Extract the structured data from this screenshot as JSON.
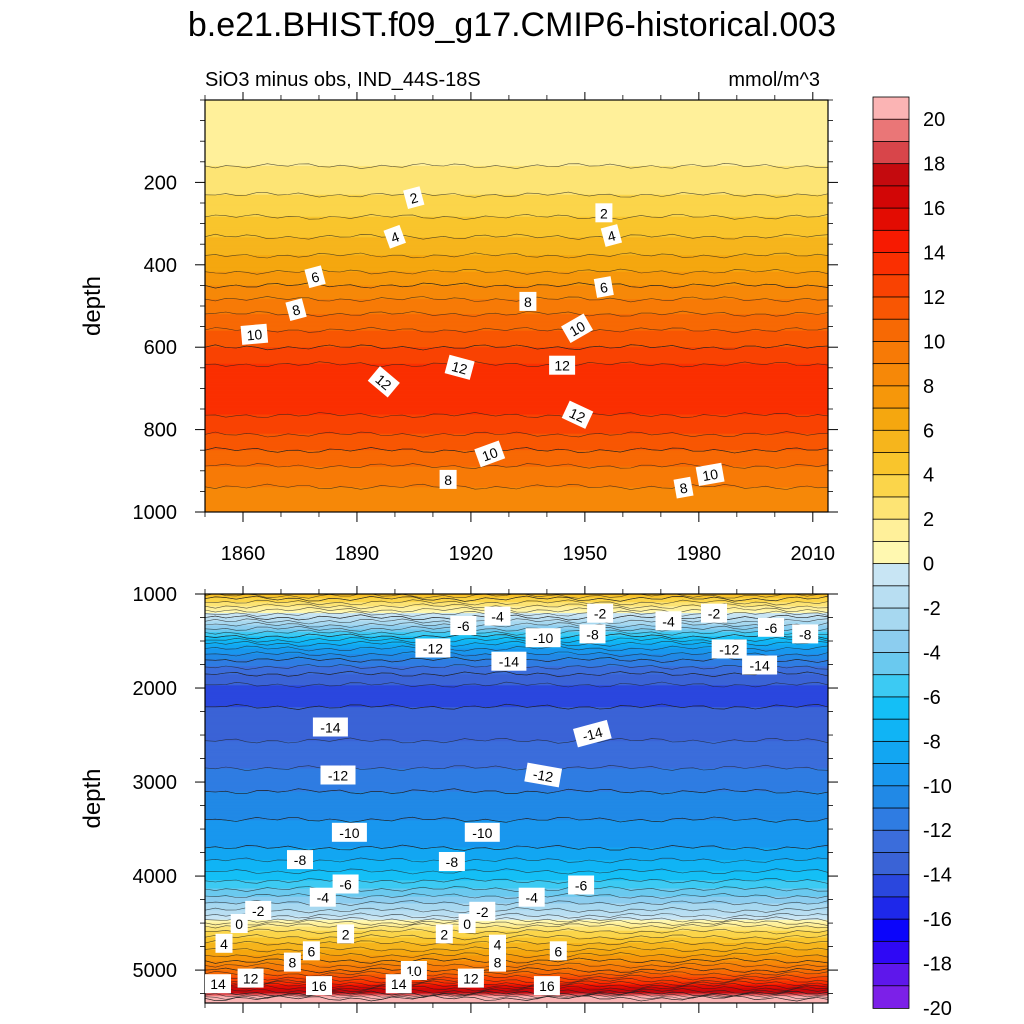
{
  "title": "b.e21.BHIST.f09_g17.CMIP6-historical.003",
  "chart_data": {
    "type": "heatmap",
    "title": "b.e21.BHIST.f09_g17.CMIP6-historical.003",
    "subtitle": "SiO3 minus obs, IND_44S-18S",
    "units": "mmol/m^3",
    "x_ticks": [
      1860,
      1890,
      1920,
      1950,
      1980,
      2010
    ],
    "xlim": [
      1850,
      2014
    ],
    "colorbar": {
      "levels": [
        -20,
        -19,
        -18,
        -17,
        -16,
        -15,
        -14,
        -13,
        -12,
        -11,
        -10,
        -9,
        -8,
        -7,
        -6,
        -5,
        -4,
        -3,
        -2,
        -1,
        0,
        1,
        2,
        3,
        4,
        5,
        6,
        7,
        8,
        9,
        10,
        11,
        12,
        13,
        14,
        15,
        16,
        17,
        18,
        19,
        20
      ],
      "tick_labels": [
        "20",
        "18",
        "16",
        "14",
        "12",
        "10",
        "8",
        "6",
        "4",
        "2",
        "0",
        "-2",
        "-4",
        "-6",
        "-8",
        "-10",
        "-12",
        "-14",
        "-16",
        "-18",
        "-20"
      ],
      "colors": [
        "#7c20e8",
        "#5e17eb",
        "#2f08f5",
        "#0b05fb",
        "#1e28ea",
        "#2a47de",
        "#3a63d6",
        "#3b6ddb",
        "#2f7ce2",
        "#2189e6",
        "#1897ee",
        "#12a6f2",
        "#10b4f5",
        "#14bff6",
        "#3ccaf3",
        "#6ac9ef",
        "#8ccdef",
        "#a7d8f0",
        "#b8def2",
        "#c8e5f4",
        "#fff8b0",
        "#fff09a",
        "#fde474",
        "#fbd54a",
        "#f9c52c",
        "#f6b51c",
        "#f5a70f",
        "#f6970a",
        "#f68808",
        "#f77a06",
        "#f76904",
        "#f85603",
        "#f94202",
        "#fa2f01",
        "#f71a01",
        "#e30c02",
        "#d20606",
        "#c40a0e",
        "#d8454a",
        "#ea7677",
        "#fbb4b4"
      ]
    },
    "panels": [
      {
        "name": "upper",
        "ylabel": "depth",
        "y_ticks": [
          200,
          400,
          600,
          800,
          1000
        ],
        "ylim": [
          0,
          1000
        ],
        "profile_depths": [
          0,
          100,
          150,
          200,
          240,
          300,
          350,
          400,
          450,
          500,
          550,
          600,
          650,
          700,
          750,
          800,
          850,
          900,
          950,
          1000
        ],
        "profile_values": [
          0.2,
          0.5,
          0.9,
          1.4,
          2.2,
          3.3,
          4.4,
          5.5,
          7.0,
          8.5,
          9.8,
          11.0,
          12.2,
          12.8,
          12.3,
          11.3,
          10.0,
          8.7,
          7.8,
          7.4
        ],
        "contour_labels": [
          {
            "text": "2",
            "year": 1905,
            "depth": 238,
            "angle": -15
          },
          {
            "text": "2",
            "year": 1955,
            "depth": 275,
            "angle": 0
          },
          {
            "text": "4",
            "year": 1900,
            "depth": 333,
            "angle": -20
          },
          {
            "text": "4",
            "year": 1957,
            "depth": 330,
            "angle": -15
          },
          {
            "text": "6",
            "year": 1879,
            "depth": 430,
            "angle": -15
          },
          {
            "text": "6",
            "year": 1955,
            "depth": 455,
            "angle": -10
          },
          {
            "text": "8",
            "year": 1874,
            "depth": 510,
            "angle": -15
          },
          {
            "text": "8",
            "year": 1935,
            "depth": 490,
            "angle": 0
          },
          {
            "text": "10",
            "year": 1863,
            "depth": 570,
            "angle": -5
          },
          {
            "text": "10",
            "year": 1948,
            "depth": 555,
            "angle": -30
          },
          {
            "text": "12",
            "year": 1897,
            "depth": 685,
            "angle": 40
          },
          {
            "text": "12",
            "year": 1917,
            "depth": 650,
            "angle": 15
          },
          {
            "text": "12",
            "year": 1944,
            "depth": 645,
            "angle": 0
          },
          {
            "text": "12",
            "year": 1948,
            "depth": 765,
            "angle": 25
          },
          {
            "text": "10",
            "year": 1925,
            "depth": 860,
            "angle": -20
          },
          {
            "text": "10",
            "year": 1983,
            "depth": 910,
            "angle": -10
          },
          {
            "text": "8",
            "year": 1914,
            "depth": 922,
            "angle": 0
          },
          {
            "text": "8",
            "year": 1976,
            "depth": 942,
            "angle": -10
          }
        ]
      },
      {
        "name": "lower",
        "ylabel": "depth",
        "y_ticks": [
          1000,
          2000,
          3000,
          4000,
          5000
        ],
        "ylim": [
          1000,
          5350
        ],
        "profile_depths": [
          1000,
          1050,
          1150,
          1250,
          1350,
          1450,
          1550,
          1700,
          1850,
          2000,
          2200,
          2500,
          2800,
          3100,
          3400,
          3700,
          3900,
          4100,
          4250,
          4400,
          4480,
          4520,
          4600,
          4700,
          4800,
          4900,
          5000,
          5100,
          5180,
          5250,
          5300,
          5350
        ],
        "profile_values": [
          4.6,
          3.0,
          0.5,
          -2.0,
          -4.5,
          -7.0,
          -9.5,
          -12.0,
          -14.0,
          -15.3,
          -15.0,
          -14.2,
          -13.2,
          -12.0,
          -11.0,
          -10.0,
          -8.5,
          -6.5,
          -4.5,
          -2.5,
          -0.6,
          0.8,
          2.2,
          3.8,
          5.3,
          7.0,
          9.0,
          11.5,
          14.5,
          17.0,
          20.0,
          20.5
        ],
        "contour_labels": [
          {
            "text": "-4",
            "year": 1927,
            "depth": 1240,
            "angle": 0
          },
          {
            "text": "-2",
            "year": 1954,
            "depth": 1210,
            "angle": 0
          },
          {
            "text": "-4",
            "year": 1972,
            "depth": 1290,
            "angle": 0
          },
          {
            "text": "-2",
            "year": 1984,
            "depth": 1210,
            "angle": 0
          },
          {
            "text": "-6",
            "year": 1918,
            "depth": 1340,
            "angle": 0
          },
          {
            "text": "-6",
            "year": 1999,
            "depth": 1360,
            "angle": 0
          },
          {
            "text": "-8",
            "year": 2008,
            "depth": 1430,
            "angle": 0
          },
          {
            "text": "-8",
            "year": 1952,
            "depth": 1430,
            "angle": 0
          },
          {
            "text": "-10",
            "year": 1939,
            "depth": 1470,
            "angle": 0
          },
          {
            "text": "-12",
            "year": 1910,
            "depth": 1580,
            "angle": 0
          },
          {
            "text": "-12",
            "year": 1988,
            "depth": 1590,
            "angle": 0
          },
          {
            "text": "-14",
            "year": 1930,
            "depth": 1720,
            "angle": 0
          },
          {
            "text": "-14",
            "year": 1996,
            "depth": 1760,
            "angle": 0
          },
          {
            "text": "-14",
            "year": 1883,
            "depth": 2420,
            "angle": 0
          },
          {
            "text": "-14",
            "year": 1952,
            "depth": 2490,
            "angle": -15
          },
          {
            "text": "-12",
            "year": 1885,
            "depth": 2930,
            "angle": 0
          },
          {
            "text": "-12",
            "year": 1939,
            "depth": 2930,
            "angle": 10
          },
          {
            "text": "-10",
            "year": 1888,
            "depth": 3540,
            "angle": 0
          },
          {
            "text": "-10",
            "year": 1923,
            "depth": 3540,
            "angle": 0
          },
          {
            "text": "-8",
            "year": 1875,
            "depth": 3830,
            "angle": 0
          },
          {
            "text": "-8",
            "year": 1915,
            "depth": 3850,
            "angle": 0
          },
          {
            "text": "-6",
            "year": 1887,
            "depth": 4090,
            "angle": 0
          },
          {
            "text": "-6",
            "year": 1949,
            "depth": 4100,
            "angle": 0
          },
          {
            "text": "-4",
            "year": 1881,
            "depth": 4230,
            "angle": 0
          },
          {
            "text": "-4",
            "year": 1936,
            "depth": 4230,
            "angle": 0
          },
          {
            "text": "-2",
            "year": 1864,
            "depth": 4370,
            "angle": 0
          },
          {
            "text": "-2",
            "year": 1923,
            "depth": 4380,
            "angle": 0
          },
          {
            "text": "0",
            "year": 1859,
            "depth": 4510,
            "angle": 0
          },
          {
            "text": "0",
            "year": 1919,
            "depth": 4510,
            "angle": 0
          },
          {
            "text": "2",
            "year": 1887,
            "depth": 4620,
            "angle": 0
          },
          {
            "text": "2",
            "year": 1913,
            "depth": 4620,
            "angle": 0
          },
          {
            "text": "4",
            "year": 1855,
            "depth": 4720,
            "angle": 0
          },
          {
            "text": "4",
            "year": 1927,
            "depth": 4730,
            "angle": 0
          },
          {
            "text": "6",
            "year": 1878,
            "depth": 4800,
            "angle": 0
          },
          {
            "text": "6",
            "year": 1943,
            "depth": 4800,
            "angle": 0
          },
          {
            "text": "8",
            "year": 1873,
            "depth": 4920,
            "angle": 0
          },
          {
            "text": "8",
            "year": 1927,
            "depth": 4920,
            "angle": 0
          },
          {
            "text": "10",
            "year": 1905,
            "depth": 5010,
            "angle": 0
          },
          {
            "text": "12",
            "year": 1862,
            "depth": 5090,
            "angle": 0
          },
          {
            "text": "12",
            "year": 1920,
            "depth": 5090,
            "angle": 0
          },
          {
            "text": "14",
            "year": 1846,
            "depth": 5150,
            "angle": 0
          },
          {
            "text": "14",
            "year": 1901,
            "depth": 5150,
            "angle": 0
          },
          {
            "text": "16",
            "year": 1880,
            "depth": 5170,
            "angle": 0
          },
          {
            "text": "16",
            "year": 1940,
            "depth": 5170,
            "angle": 0
          }
        ]
      }
    ]
  }
}
